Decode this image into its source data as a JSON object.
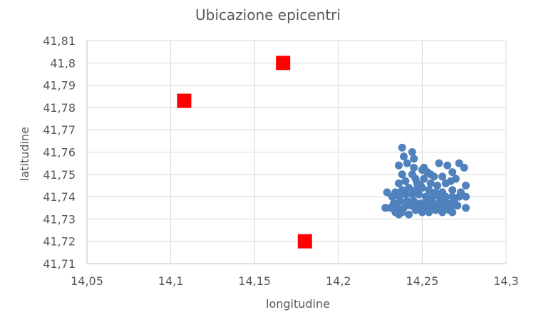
{
  "chart_data": {
    "type": "scatter",
    "title": "Ubicazione epicentri",
    "xlabel": "longitudine",
    "ylabel": "latitudine",
    "xlim": [
      14.05,
      14.3
    ],
    "ylim": [
      41.71,
      41.81
    ],
    "x_ticks": [
      "14,05",
      "14,1",
      "14,15",
      "14,2",
      "14,25",
      "14,3"
    ],
    "y_ticks": [
      "41,81",
      "41,8",
      "41,79",
      "41,78",
      "41,77",
      "41,76",
      "41,75",
      "41,74",
      "41,73",
      "41,72",
      "41,71"
    ],
    "grid": true,
    "series": [
      {
        "marker": "circle",
        "color": "#4f81bd",
        "points": [
          [
            14.238,
            41.762
          ],
          [
            14.239,
            41.758
          ],
          [
            14.244,
            41.76
          ],
          [
            14.245,
            41.757
          ],
          [
            14.241,
            41.755
          ],
          [
            14.236,
            41.754
          ],
          [
            14.245,
            41.753
          ],
          [
            14.25,
            41.752
          ],
          [
            14.251,
            41.753
          ],
          [
            14.253,
            41.751
          ],
          [
            14.255,
            41.75
          ],
          [
            14.26,
            41.755
          ],
          [
            14.265,
            41.754
          ],
          [
            14.272,
            41.755
          ],
          [
            14.275,
            41.753
          ],
          [
            14.268,
            41.751
          ],
          [
            14.262,
            41.749
          ],
          [
            14.257,
            41.749
          ],
          [
            14.244,
            41.75
          ],
          [
            14.238,
            41.75
          ],
          [
            14.24,
            41.747
          ],
          [
            14.236,
            41.746
          ],
          [
            14.246,
            41.748
          ],
          [
            14.251,
            41.748
          ],
          [
            14.249,
            41.745
          ],
          [
            14.255,
            41.746
          ],
          [
            14.259,
            41.745
          ],
          [
            14.264,
            41.746
          ],
          [
            14.267,
            41.747
          ],
          [
            14.27,
            41.748
          ],
          [
            14.276,
            41.745
          ],
          [
            14.273,
            41.742
          ],
          [
            14.268,
            41.743
          ],
          [
            14.262,
            41.742
          ],
          [
            14.258,
            41.742
          ],
          [
            14.254,
            41.743
          ],
          [
            14.25,
            41.744
          ],
          [
            14.246,
            41.743
          ],
          [
            14.242,
            41.744
          ],
          [
            14.238,
            41.743
          ],
          [
            14.234,
            41.742
          ],
          [
            14.229,
            41.742
          ],
          [
            14.232,
            41.74
          ],
          [
            14.236,
            41.74
          ],
          [
            14.24,
            41.741
          ],
          [
            14.244,
            41.741
          ],
          [
            14.248,
            41.741
          ],
          [
            14.252,
            41.74
          ],
          [
            14.256,
            41.74
          ],
          [
            14.26,
            41.74
          ],
          [
            14.264,
            41.74
          ],
          [
            14.268,
            41.74
          ],
          [
            14.272,
            41.74
          ],
          [
            14.276,
            41.74
          ],
          [
            14.233,
            41.737
          ],
          [
            14.237,
            41.738
          ],
          [
            14.241,
            41.738
          ],
          [
            14.245,
            41.738
          ],
          [
            14.249,
            41.737
          ],
          [
            14.253,
            41.738
          ],
          [
            14.257,
            41.737
          ],
          [
            14.261,
            41.738
          ],
          [
            14.265,
            41.737
          ],
          [
            14.269,
            41.738
          ],
          [
            14.231,
            41.735
          ],
          [
            14.235,
            41.735
          ],
          [
            14.239,
            41.735
          ],
          [
            14.243,
            41.736
          ],
          [
            14.247,
            41.735
          ],
          [
            14.251,
            41.735
          ],
          [
            14.255,
            41.736
          ],
          [
            14.259,
            41.735
          ],
          [
            14.263,
            41.736
          ],
          [
            14.267,
            41.735
          ],
          [
            14.271,
            41.736
          ],
          [
            14.276,
            41.735
          ],
          [
            14.228,
            41.735
          ],
          [
            14.234,
            41.733
          ],
          [
            14.238,
            41.733
          ],
          [
            14.242,
            41.732
          ],
          [
            14.246,
            41.734
          ],
          [
            14.25,
            41.733
          ],
          [
            14.254,
            41.733
          ],
          [
            14.258,
            41.734
          ],
          [
            14.262,
            41.733
          ],
          [
            14.266,
            41.734
          ],
          [
            14.268,
            41.733
          ],
          [
            14.236,
            41.732
          ],
          [
            14.253,
            41.734
          ],
          [
            14.247,
            41.746
          ]
        ]
      },
      {
        "marker": "square",
        "color": "#ff0000",
        "points": [
          [
            14.167,
            41.8
          ],
          [
            14.108,
            41.783
          ],
          [
            14.18,
            41.72
          ]
        ]
      }
    ]
  }
}
